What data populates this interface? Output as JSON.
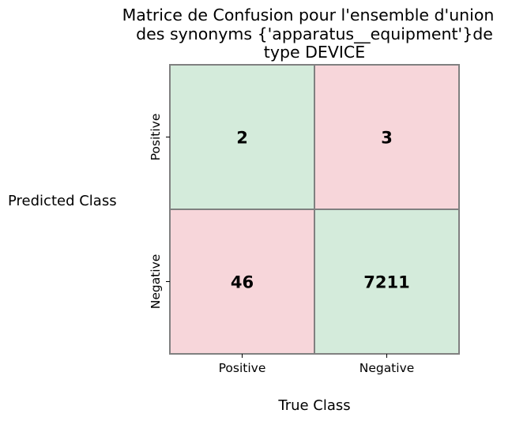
{
  "chart_data": {
    "type": "heatmap",
    "title_lines": [
      "Matrice de Confusion pour l'ensemble d'union",
      "des synonyms {'apparatus__equipment'}de",
      "type  DEVICE"
    ],
    "xlabel": "True Class",
    "ylabel": "Predicted Class",
    "x_categories": [
      "Positive",
      "Negative"
    ],
    "y_categories": [
      "Positive",
      "Negative"
    ],
    "matrix": [
      [
        2,
        3
      ],
      [
        46,
        7211
      ]
    ],
    "cell_colors": [
      [
        "#d4ebdb",
        "#f7d6da"
      ],
      [
        "#f7d6da",
        "#d4ebdb"
      ]
    ],
    "colors": {
      "correct": "#d4ebdb",
      "incorrect": "#f7d6da",
      "border": "#808080"
    }
  }
}
